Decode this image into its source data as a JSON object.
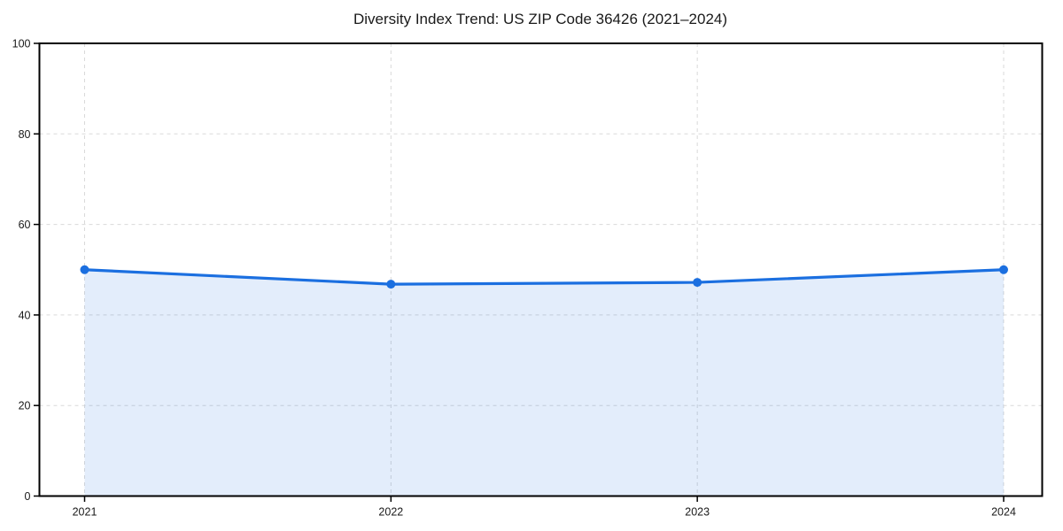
{
  "chart_data": {
    "type": "area",
    "title": "Diversity Index Trend: US ZIP Code 36426 (2021–2024)",
    "categories": [
      "2021",
      "2022",
      "2023",
      "2024"
    ],
    "values": [
      50,
      46.8,
      47.2,
      50
    ],
    "xlabel": "",
    "ylabel": "",
    "ylim": [
      0,
      100
    ],
    "yticks": [
      0,
      20,
      40,
      60,
      80,
      100
    ],
    "grid": true,
    "grid_linestyle": "dashed",
    "legend_position": "none",
    "marker": "circle",
    "colors": {
      "line": "#1b6fe0",
      "marker": "#1b6fe0",
      "fill": "#1b6fe0",
      "fill_opacity": 0.12,
      "grid": "#d9d9d9",
      "axis": "#000000",
      "text": "#1a1a1a",
      "background": "#ffffff"
    }
  }
}
